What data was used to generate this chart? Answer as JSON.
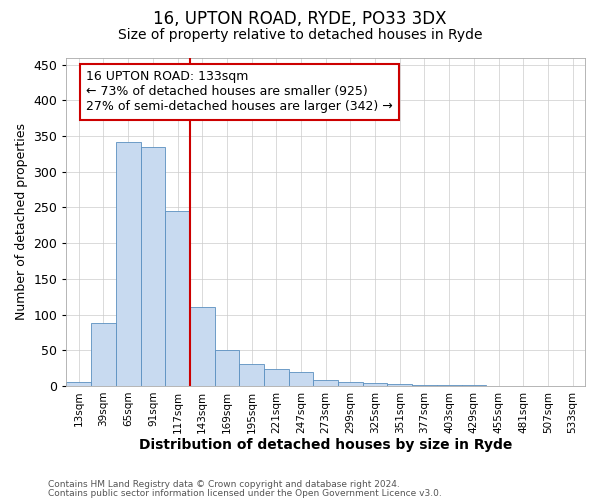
{
  "title1": "16, UPTON ROAD, RYDE, PO33 3DX",
  "title2": "Size of property relative to detached houses in Ryde",
  "xlabel": "Distribution of detached houses by size in Ryde",
  "ylabel": "Number of detached properties",
  "categories": [
    "13sqm",
    "39sqm",
    "65sqm",
    "91sqm",
    "117sqm",
    "143sqm",
    "169sqm",
    "195sqm",
    "221sqm",
    "247sqm",
    "273sqm",
    "299sqm",
    "325sqm",
    "351sqm",
    "377sqm",
    "403sqm",
    "429sqm",
    "455sqm",
    "481sqm",
    "507sqm",
    "533sqm"
  ],
  "values": [
    5,
    88,
    341,
    334,
    245,
    110,
    50,
    31,
    24,
    19,
    9,
    5,
    4,
    3,
    2,
    1,
    1,
    0,
    0,
    0,
    0
  ],
  "bar_color": "#c8daf0",
  "bar_edge_color": "#5a8fc0",
  "vline_x": 4.5,
  "vline_color": "#cc0000",
  "annotation_line1": "16 UPTON ROAD: 133sqm",
  "annotation_line2": "← 73% of detached houses are smaller (925)",
  "annotation_line3": "27% of semi-detached houses are larger (342) →",
  "annotation_box_color": "#ffffff",
  "annotation_box_edge": "#cc0000",
  "ylim": [
    0,
    460
  ],
  "yticks": [
    0,
    50,
    100,
    150,
    200,
    250,
    300,
    350,
    400,
    450
  ],
  "footer1": "Contains HM Land Registry data © Crown copyright and database right 2024.",
  "footer2": "Contains public sector information licensed under the Open Government Licence v3.0.",
  "bg_color": "#ffffff",
  "grid_color": "#cccccc",
  "title1_fontsize": 12,
  "title2_fontsize": 10,
  "xlabel_fontsize": 10,
  "ylabel_fontsize": 9,
  "ann_fontsize": 9,
  "footer_fontsize": 6.5
}
